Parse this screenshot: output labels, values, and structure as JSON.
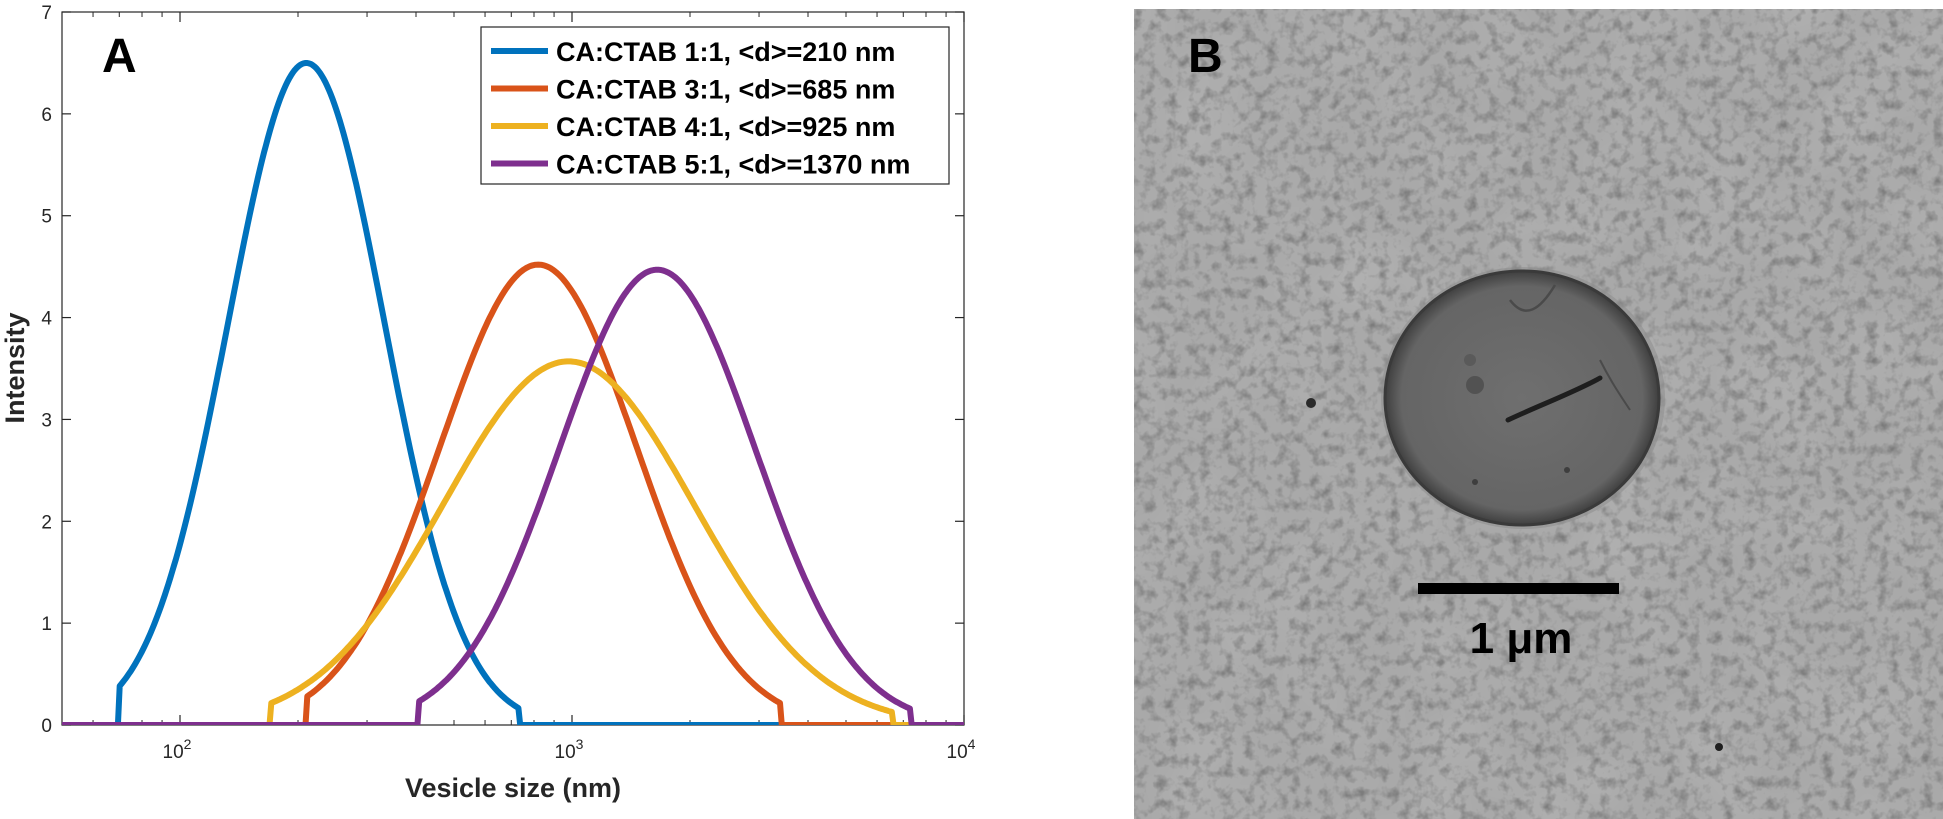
{
  "chart_data": {
    "type": "line",
    "panel_label": "A",
    "xlabel": "Vesicle size (nm)",
    "ylabel": "Intensity",
    "xscale": "log",
    "xlim": [
      50,
      10000
    ],
    "ylim": [
      0,
      7
    ],
    "xticks": [
      {
        "value": 100,
        "base": "10",
        "exp": "2"
      },
      {
        "value": 1000,
        "base": "10",
        "exp": "3"
      },
      {
        "value": 10000,
        "base": "10",
        "exp": "4"
      }
    ],
    "yticks": [
      0,
      1,
      2,
      3,
      4,
      5,
      6,
      7
    ],
    "legend_position": "top-right",
    "series": [
      {
        "name": "CA:CTAB 1:1, <d>=210 nm",
        "color": "#0072BD",
        "peak": 6.5,
        "center": 210,
        "sigma": 0.2,
        "lo": 70,
        "hi": 730
      },
      {
        "name": "CA:CTAB 3:1, <d>=685 nm",
        "color": "#D95319",
        "peak": 4.52,
        "center": 820,
        "sigma": 0.25,
        "lo": 210,
        "hi": 3400
      },
      {
        "name": "CA:CTAB 4:1, <d>=925 nm",
        "color": "#EDB120",
        "peak": 3.57,
        "center": 980,
        "sigma": 0.32,
        "lo": 170,
        "hi": 6600
      },
      {
        "name": "CA:CTAB 5:1, <d>=1370 nm",
        "color": "#7E2F8E",
        "peak": 4.47,
        "center": 1650,
        "sigma": 0.25,
        "lo": 405,
        "hi": 7300
      }
    ]
  },
  "micrograph": {
    "panel_label": "B",
    "scale_bar_label": "1 μm"
  }
}
